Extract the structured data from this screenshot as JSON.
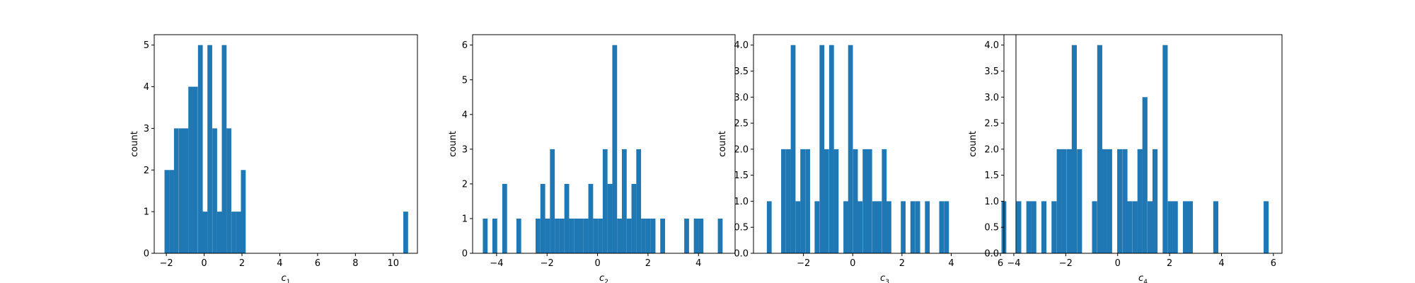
{
  "chart_data": [
    {
      "type": "bar",
      "xlabel": "c",
      "xlabel_sub": "1",
      "ylabel": "count",
      "xlim": [
        -2.64,
        11.28
      ],
      "ylim": [
        0,
        5.25
      ],
      "xticks": [
        -2,
        0,
        2,
        4,
        6,
        8,
        10
      ],
      "xtick_labels": [
        "−2",
        "0",
        "2",
        "4",
        "6",
        "8",
        "10"
      ],
      "yticks": [
        0,
        1,
        2,
        3,
        4,
        5
      ],
      "ytick_labels": [
        "0",
        "1",
        "2",
        "3",
        "4",
        "5"
      ],
      "bar_width": 0.253,
      "color": "#1f77b4",
      "x": [
        -1.97,
        -1.72,
        -1.47,
        -1.21,
        -0.96,
        -0.71,
        -0.46,
        -0.2,
        0.05,
        0.3,
        0.56,
        0.81,
        1.06,
        1.31,
        1.57,
        1.82,
        2.07,
        10.66
      ],
      "values": [
        2,
        2,
        3,
        3,
        3,
        4,
        4,
        5,
        1,
        5,
        3,
        1,
        5,
        3,
        1,
        1,
        2,
        1
      ]
    },
    {
      "type": "bar",
      "xlabel": "c",
      "xlabel_sub": "2",
      "ylabel": "count",
      "xlim": [
        -4.95,
        5.45
      ],
      "ylim": [
        0,
        6.3
      ],
      "xticks": [
        -4,
        -2,
        0,
        2,
        4
      ],
      "xtick_labels": [
        "−4",
        "−2",
        "0",
        "2",
        "4"
      ],
      "yticks": [
        0,
        1,
        2,
        3,
        4,
        5,
        6
      ],
      "ytick_labels": [
        "0",
        "1",
        "2",
        "3",
        "4",
        "5",
        "6"
      ],
      "bar_width": 0.19,
      "color": "#1f77b4",
      "x": [
        -4.45,
        -4.07,
        -3.68,
        -3.12,
        -2.36,
        -2.17,
        -1.98,
        -1.79,
        -1.6,
        -1.41,
        -1.22,
        -1.03,
        -0.84,
        -0.65,
        -0.46,
        -0.27,
        -0.08,
        0.11,
        0.3,
        0.49,
        0.68,
        0.87,
        1.06,
        1.25,
        1.44,
        1.63,
        1.82,
        2.01,
        2.2,
        2.58,
        3.53,
        3.91,
        4.1,
        4.86
      ],
      "values": [
        1,
        1,
        2,
        1,
        1,
        2,
        1,
        3,
        1,
        1,
        2,
        1,
        1,
        1,
        1,
        2,
        1,
        1,
        3,
        2,
        6,
        1,
        3,
        1,
        2,
        3,
        1,
        1,
        1,
        1,
        1,
        1,
        1,
        1
      ]
    },
    {
      "type": "bar",
      "xlabel": "c",
      "xlabel_sub": "3",
      "ylabel": "count",
      "xlim": [
        -4.03,
        6.63
      ],
      "ylim": [
        0,
        4.2
      ],
      "xticks": [
        -2,
        0,
        2,
        4,
        6
      ],
      "xtick_labels": [
        "−2",
        "0",
        "2",
        "4",
        "6"
      ],
      "yticks": [
        0,
        0.5,
        1,
        1.5,
        2,
        2.5,
        3,
        3.5,
        4
      ],
      "ytick_labels": [
        "0.0",
        "0.5",
        "1.0",
        "1.5",
        "2.0",
        "2.5",
        "3.0",
        "3.5",
        "4.0"
      ],
      "bar_width": 0.195,
      "color": "#1f77b4",
      "x": [
        -3.39,
        -2.81,
        -2.61,
        -2.42,
        -2.22,
        -2.03,
        -1.83,
        -1.45,
        -1.25,
        -1.06,
        -0.86,
        -0.67,
        -0.28,
        -0.09,
        0.11,
        0.3,
        0.5,
        0.69,
        0.89,
        1.08,
        1.28,
        1.47,
        2.05,
        2.44,
        2.64,
        3.03,
        3.61,
        3.81,
        6.14
      ],
      "values": [
        1,
        2,
        2,
        4,
        1,
        2,
        2,
        1,
        4,
        2,
        4,
        2,
        1,
        4,
        2,
        1,
        2,
        2,
        1,
        1,
        2,
        1,
        1,
        1,
        1,
        1,
        1,
        1,
        1
      ]
    },
    {
      "type": "bar",
      "xlabel": "c",
      "xlabel_sub": "4",
      "ylabel": "count",
      "xlim": [
        -4.38,
        6.33
      ],
      "ylim": [
        0,
        4.2
      ],
      "xticks": [
        -4,
        -2,
        0,
        2,
        4,
        6
      ],
      "xtick_labels": [
        "−4",
        "−2",
        "0",
        "2",
        "4",
        "6"
      ],
      "yticks": [
        0,
        0.5,
        1,
        1.5,
        2,
        2.5,
        3,
        3.5,
        4
      ],
      "ytick_labels": [
        "0.0",
        "0.5",
        "1.0",
        "1.5",
        "2.0",
        "2.5",
        "3.0",
        "3.5",
        "4.0"
      ],
      "bar_width": 0.195,
      "color": "#1f77b4",
      "x": [
        -3.81,
        -3.42,
        -3.23,
        -2.84,
        -2.45,
        -2.25,
        -2.06,
        -1.86,
        -1.67,
        -1.47,
        -0.89,
        -0.69,
        -0.5,
        -0.31,
        0.08,
        0.28,
        0.47,
        0.67,
        0.86,
        1.05,
        1.25,
        1.44,
        1.83,
        2.03,
        2.22,
        2.61,
        2.8,
        3.78,
        5.72
      ],
      "values": [
        1,
        1,
        1,
        1,
        1,
        2,
        2,
        2,
        4,
        2,
        1,
        4,
        2,
        2,
        2,
        2,
        1,
        1,
        2,
        3,
        1,
        2,
        4,
        1,
        1,
        1,
        1,
        1,
        1
      ]
    }
  ]
}
